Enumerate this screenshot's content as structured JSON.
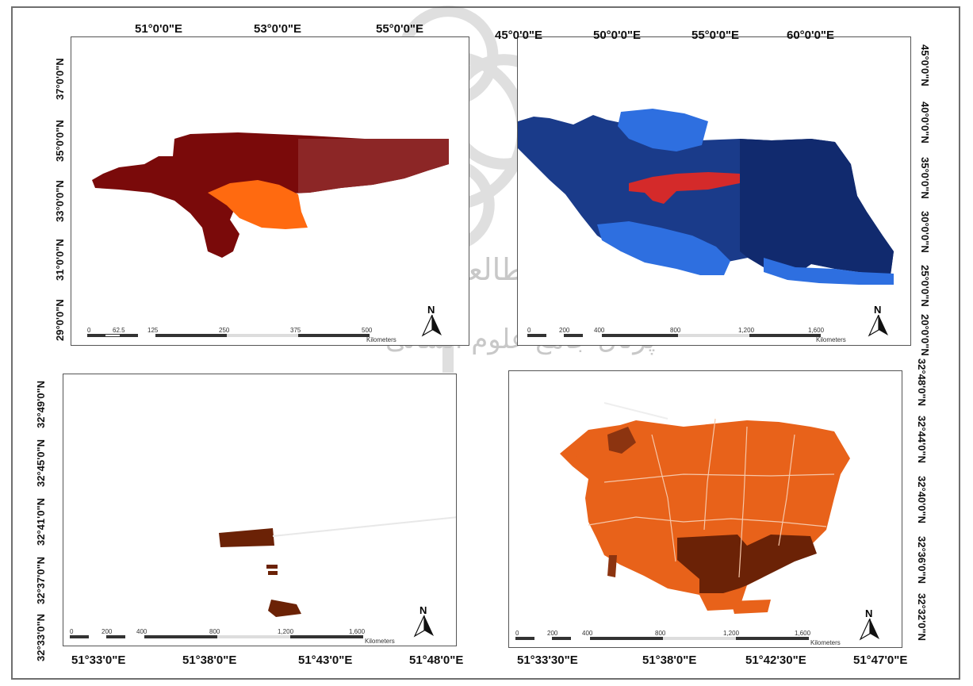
{
  "watermark": {
    "line1": "پژوهشگاه علوم انسانی و مطالعات فرهنگی",
    "line2": "پرتال جامع علوم انسانی"
  },
  "panels": {
    "top_left": {
      "top_ticks": [
        "51°0'0\"E",
        "53°0'0\"E",
        "55°0'0\"E"
      ],
      "left_ticks": [
        "37°0'0\"N",
        "35°0'0\"N",
        "33°0'0\"N",
        "31°0'0\"N",
        "29°0'0\"N"
      ],
      "scale_labels": [
        "0",
        "62.5",
        "125",
        "250",
        "375",
        "500"
      ],
      "scale_unit": "Kilometers",
      "north": "N",
      "colors": {
        "region": "#7a0a0a",
        "highlight": "#ff6a10"
      }
    },
    "top_right": {
      "top_ticks": [
        "45°0'0\"E",
        "50°0'0\"E",
        "55°0'0\"E",
        "60°0'0\"E"
      ],
      "right_ticks": [
        "45°0'0\"N",
        "40°0'0\"N",
        "35°0'0\"N",
        "30°0'0\"N",
        "25°0'0\"N",
        "20°0'0\"N"
      ],
      "scale_labels": [
        "0",
        "200",
        "400",
        "800",
        "1,200",
        "1,600"
      ],
      "scale_unit": "Kilometers",
      "north": "N",
      "colors": {
        "country": "#1a3b8a",
        "highlight": "#d42a2a",
        "light": "#2e6fe0"
      }
    },
    "bottom_left": {
      "bottom_ticks": [
        "51°33'0\"E",
        "51°38'0\"E",
        "51°43'0\"E",
        "51°48'0\"E"
      ],
      "left_ticks": [
        "32°49'0\"N",
        "32°45'0\"N",
        "32°41'0\"N",
        "32°37'0\"N",
        "32°33'0\"N"
      ],
      "scale_labels": [
        "0",
        "200",
        "400",
        "800",
        "1,200",
        "1,600"
      ],
      "scale_unit": "Kilometers",
      "north": "N",
      "colors": {
        "parcel": "#6b2206"
      }
    },
    "bottom_right": {
      "bottom_ticks": [
        "51°33'30\"E",
        "51°38'0\"E",
        "51°42'30\"E",
        "51°47'0\"E"
      ],
      "right_ticks": [
        "32°48'0\"N",
        "32°44'0\"N",
        "32°40'0\"N",
        "32°36'0\"N",
        "32°32'0\"N"
      ],
      "scale_labels": [
        "0",
        "200",
        "400",
        "800",
        "1,200",
        "1,600"
      ],
      "scale_unit": "Kilometers",
      "north": "N",
      "colors": {
        "urban": "#e8621a",
        "dark": "#6b2206"
      }
    }
  }
}
